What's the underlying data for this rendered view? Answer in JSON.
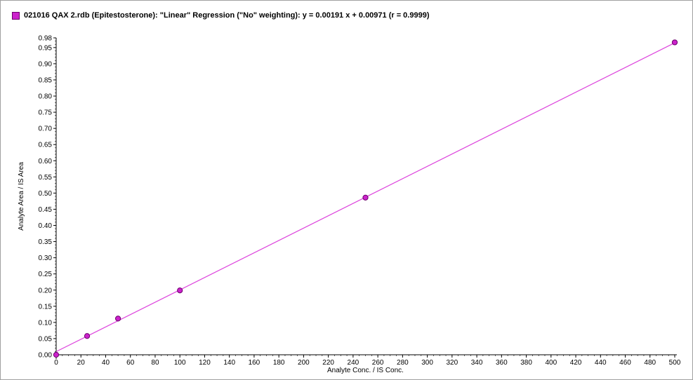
{
  "legend": {
    "text": "021016 QAX 2.rdb (Epitestosterone): \"Linear\" Regression (\"No\" weighting): y = 0.00191 x + 0.00971 (r = 0.9999)"
  },
  "colors": {
    "series": "#cc22cc",
    "line": "#dd44dd",
    "marker_edge": "#6a006a",
    "axis": "#000000"
  },
  "chart_data": {
    "type": "scatter",
    "title": "",
    "xlabel": "Analyte Conc. / IS Conc.",
    "ylabel": "Analyte Area / IS Area",
    "xlim": [
      0,
      500
    ],
    "ylim": [
      0,
      0.98
    ],
    "x_ticks": [
      0,
      20,
      40,
      60,
      80,
      100,
      120,
      140,
      160,
      180,
      200,
      220,
      240,
      260,
      280,
      300,
      320,
      340,
      360,
      380,
      400,
      420,
      440,
      460,
      480,
      500
    ],
    "y_ticks": [
      "0.00",
      "0.05",
      "0.10",
      "0.15",
      "0.20",
      "0.25",
      "0.30",
      "0.35",
      "0.40",
      "0.45",
      "0.50",
      "0.55",
      "0.60",
      "0.65",
      "0.70",
      "0.75",
      "0.80",
      "0.85",
      "0.90",
      "0.95",
      "0.98"
    ],
    "series": [
      {
        "x": [
          0,
          25,
          50,
          100,
          250,
          500
        ],
        "y": [
          0.0,
          0.058,
          0.112,
          0.199,
          0.486,
          0.966
        ]
      }
    ],
    "regression": {
      "slope": 0.00191,
      "intercept": 0.00971,
      "x_range": [
        0,
        500
      ]
    },
    "grid": false,
    "legend_position": "top-left"
  }
}
